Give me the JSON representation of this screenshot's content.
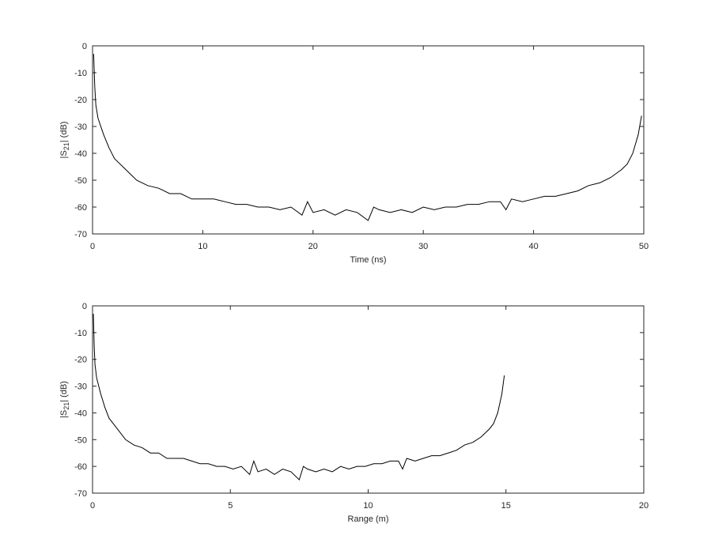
{
  "chart_data": [
    {
      "type": "line",
      "xlabel": "Time (ns)",
      "ylabel": [
        "|S",
        "21",
        "| (dB)"
      ],
      "xlim": [
        0,
        50
      ],
      "ylim": [
        -70,
        0
      ],
      "xticks": [
        0,
        10,
        20,
        30,
        40,
        50
      ],
      "yticks": [
        -70,
        -60,
        -50,
        -40,
        -30,
        -20,
        -10,
        0
      ],
      "x": [
        0.1,
        0.2,
        0.3,
        0.5,
        1,
        1.5,
        2,
        3,
        4,
        5,
        6,
        7,
        8,
        9,
        10,
        11,
        12,
        13,
        14,
        15,
        16,
        17,
        18,
        19,
        19.5,
        20,
        21,
        22,
        23,
        24,
        25,
        25.5,
        26,
        27,
        28,
        29,
        30,
        31,
        32,
        33,
        34,
        35,
        36,
        37,
        37.5,
        38,
        39,
        40,
        41,
        42,
        43,
        44,
        45,
        46,
        47,
        48,
        48.5,
        49,
        49.5,
        49.8
      ],
      "series": [
        {
          "color": "#000000",
          "values": [
            -3,
            -15,
            -22,
            -27,
            -33,
            -38,
            -42,
            -46,
            -50,
            -52,
            -53,
            -55,
            -55,
            -57,
            -57,
            -57,
            -58,
            -59,
            -59,
            -60,
            -60,
            -61,
            -60,
            -63,
            -58,
            -62,
            -61,
            -63,
            -61,
            -62,
            -65,
            -60,
            -61,
            -62,
            -61,
            -62,
            -60,
            -61,
            -60,
            -60,
            -59,
            -59,
            -58,
            -58,
            -61,
            -57,
            -58,
            -57,
            -56,
            -56,
            -55,
            -54,
            -52,
            -51,
            -49,
            -46,
            -44,
            -40,
            -33,
            -26
          ]
        }
      ]
    },
    {
      "type": "line",
      "xlabel": "Range (m)",
      "ylabel": [
        "|S",
        "21",
        "| (dB)"
      ],
      "xlim": [
        0,
        20
      ],
      "ylim": [
        -70,
        0
      ],
      "xticks": [
        0,
        5,
        10,
        15,
        20
      ],
      "yticks": [
        -70,
        -60,
        -50,
        -40,
        -30,
        -20,
        -10,
        0
      ],
      "x": [
        0.03,
        0.06,
        0.09,
        0.15,
        0.3,
        0.45,
        0.6,
        0.9,
        1.2,
        1.5,
        1.8,
        2.1,
        2.4,
        2.7,
        3,
        3.3,
        3.6,
        3.9,
        4.2,
        4.5,
        4.8,
        5.1,
        5.4,
        5.7,
        5.85,
        6,
        6.3,
        6.6,
        6.9,
        7.2,
        7.5,
        7.65,
        7.8,
        8.1,
        8.4,
        8.7,
        9,
        9.3,
        9.6,
        9.9,
        10.2,
        10.5,
        10.8,
        11.1,
        11.25,
        11.4,
        11.7,
        12,
        12.3,
        12.6,
        12.9,
        13.2,
        13.5,
        13.8,
        14.1,
        14.4,
        14.55,
        14.7,
        14.85,
        14.94
      ],
      "series": [
        {
          "color": "#000000",
          "values": [
            -3,
            -15,
            -22,
            -27,
            -33,
            -38,
            -42,
            -46,
            -50,
            -52,
            -53,
            -55,
            -55,
            -57,
            -57,
            -57,
            -58,
            -59,
            -59,
            -60,
            -60,
            -61,
            -60,
            -63,
            -58,
            -62,
            -61,
            -63,
            -61,
            -62,
            -65,
            -60,
            -61,
            -62,
            -61,
            -62,
            -60,
            -61,
            -60,
            -60,
            -59,
            -59,
            -58,
            -58,
            -61,
            -57,
            -58,
            -57,
            -56,
            -56,
            -55,
            -54,
            -52,
            -51,
            -49,
            -46,
            -44,
            -40,
            -33,
            -26
          ]
        }
      ]
    }
  ]
}
